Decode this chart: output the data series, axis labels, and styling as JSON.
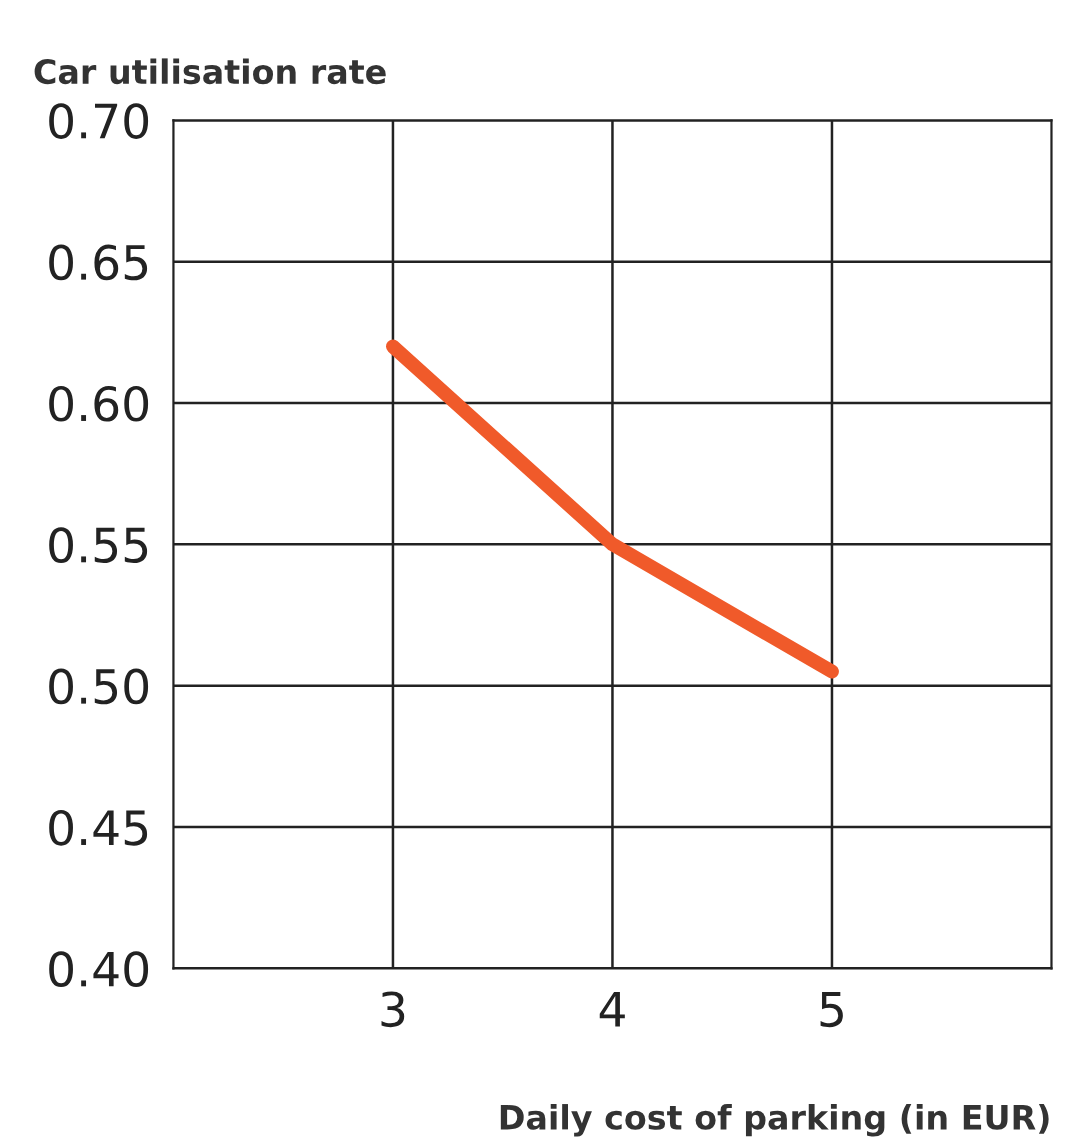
{
  "chart_data": {
    "type": "line",
    "ylabel": "Car utilisation rate",
    "xlabel": "Daily cost of parking (in EUR)",
    "x": [
      3,
      4,
      5
    ],
    "series": [
      {
        "color": "#f05a2a",
        "values": [
          0.62,
          0.55,
          0.505
        ]
      }
    ],
    "xlim": [
      2,
      6
    ],
    "xticks": [
      3,
      4,
      5
    ],
    "ylim": [
      0.4,
      0.7
    ],
    "yticks": [
      {
        "value": 0.4,
        "label": "0.40"
      },
      {
        "value": 0.45,
        "label": "0.45"
      },
      {
        "value": 0.5,
        "label": "0.50"
      },
      {
        "value": 0.55,
        "label": "0.55"
      },
      {
        "value": 0.6,
        "label": "0.60"
      },
      {
        "value": 0.65,
        "label": "0.65"
      },
      {
        "value": 0.7,
        "label": "0.70"
      }
    ],
    "grid": true,
    "marker": "none",
    "line_style": "solid"
  }
}
